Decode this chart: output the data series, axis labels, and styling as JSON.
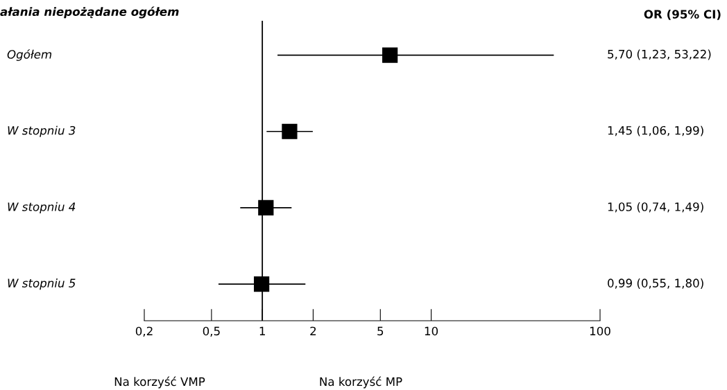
{
  "chart_data": {
    "type": "scatter",
    "title": "ałania niepożądane ogółem",
    "orientation": "horizontal",
    "log": "x",
    "categories": [
      "Ogółem",
      "W stopniu 3",
      "W stopniu 4",
      "W stopniu 5"
    ],
    "values": [
      5.7,
      1.45,
      1.05,
      0.99
    ],
    "errors": [
      [
        1.23,
        53.22
      ],
      [
        1.06,
        1.99
      ],
      [
        0.74,
        1.49
      ],
      [
        0.55,
        1.8
      ]
    ],
    "color": "#000000",
    "marker": "square",
    "grid": false,
    "legend": false,
    "xlim": [
      0.2,
      100
    ],
    "xticks": [
      {
        "value": 0.2,
        "label": "0,2"
      },
      {
        "value": 0.5,
        "label": "0,5"
      },
      1,
      2,
      5,
      10,
      100
    ],
    "ref_lines": [
      {
        "axis": "x",
        "value": 1,
        "color": "#000000"
      }
    ],
    "annotations": [
      "OR (95% CI)",
      "Na korzyść VMP",
      "Na korzyść MP",
      "5,70 (1,23, 53,22)",
      "1,45 (1,06, 1,99)",
      "1,05 (0,74, 1,49)",
      "0,99 (0,55, 1,80)"
    ]
  }
}
